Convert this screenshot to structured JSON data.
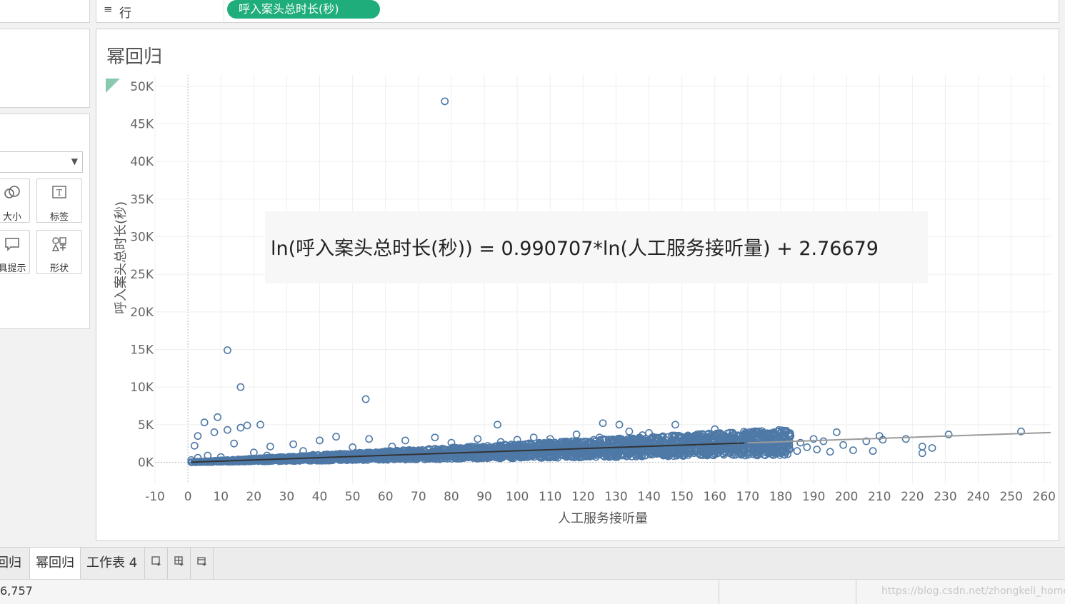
{
  "shelf": {
    "rows_icon": "≡",
    "rows_label": "行",
    "rows_pill": "呼入案头总时长(秒)"
  },
  "marks_panel": {
    "buttons": [
      {
        "label": "大小",
        "icon": "size-icon"
      },
      {
        "label": "标签",
        "icon": "label-icon"
      },
      {
        "label": "具提示",
        "icon": "tooltip-icon"
      },
      {
        "label": "形状",
        "icon": "shape-icon"
      }
    ]
  },
  "chart_data": {
    "type": "scatter",
    "title": "幂回归",
    "xlabel": "人工服务接听量",
    "ylabel": "呼入案头总时长(秒)",
    "xlim": [
      -10,
      262
    ],
    "ylim": [
      -2800,
      51500
    ],
    "x_ticks": [
      -10,
      0,
      10,
      20,
      30,
      40,
      50,
      60,
      70,
      80,
      90,
      100,
      110,
      120,
      130,
      140,
      150,
      160,
      170,
      180,
      190,
      200,
      210,
      220,
      230,
      240,
      250,
      260
    ],
    "y_ticks": [
      0,
      5000,
      10000,
      15000,
      20000,
      25000,
      30000,
      35000,
      40000,
      45000,
      50000
    ],
    "y_tick_labels": [
      "0K",
      "5K",
      "10K",
      "15K",
      "20K",
      "25K",
      "30K",
      "35K",
      "40K",
      "45K",
      "50K"
    ],
    "grid": true,
    "marker": "open circle",
    "series_color": "#4e79a7",
    "trend_color_dark": "#333333",
    "trend_color_light": "#9a9a9a",
    "trend_model": {
      "type": "power",
      "slope": 0.990707,
      "intercept": 2.76679
    },
    "annotation": "ln(呼入案头总时长(秒)) = 0.990707*ln(人工服务接听量) + 2.76679",
    "points": [
      [
        78,
        48000
      ],
      [
        12,
        14900
      ],
      [
        16,
        10000
      ],
      [
        54,
        8400
      ],
      [
        9,
        6000
      ],
      [
        5,
        5300
      ],
      [
        22,
        5000
      ],
      [
        18,
        4900
      ],
      [
        16,
        4600
      ],
      [
        12,
        4300
      ],
      [
        8,
        4000
      ],
      [
        3,
        3500
      ],
      [
        94,
        5000
      ],
      [
        126,
        5200
      ],
      [
        131,
        5000
      ],
      [
        148,
        5000
      ],
      [
        160,
        4400
      ],
      [
        178,
        4000
      ],
      [
        183,
        3500
      ],
      [
        190,
        3100
      ],
      [
        193,
        2800
      ],
      [
        197,
        4000
      ],
      [
        199,
        2300
      ],
      [
        202,
        1600
      ],
      [
        206,
        2800
      ],
      [
        208,
        1500
      ],
      [
        210,
        3500
      ],
      [
        211,
        3000
      ],
      [
        218,
        3100
      ],
      [
        223,
        1200
      ],
      [
        223,
        2100
      ],
      [
        226,
        1900
      ],
      [
        231,
        3700
      ],
      [
        253,
        4100
      ],
      [
        188,
        2000
      ],
      [
        185,
        1500
      ],
      [
        174,
        1900
      ],
      [
        170,
        2400
      ],
      [
        165,
        2900
      ],
      [
        152,
        3400
      ],
      [
        140,
        3900
      ],
      [
        134,
        4100
      ],
      [
        118,
        3700
      ],
      [
        105,
        3300
      ],
      [
        100,
        3000
      ],
      [
        88,
        3100
      ],
      [
        75,
        3300
      ],
      [
        66,
        2900
      ],
      [
        55,
        3100
      ],
      [
        45,
        3400
      ],
      [
        40,
        2900
      ],
      [
        32,
        2400
      ],
      [
        25,
        2100
      ],
      [
        14,
        2500
      ],
      [
        2,
        2200
      ],
      [
        1,
        300
      ],
      [
        3,
        600
      ],
      [
        6,
        900
      ],
      [
        10,
        700
      ],
      [
        20,
        1300
      ],
      [
        35,
        1500
      ],
      [
        50,
        2000
      ],
      [
        62,
        2100
      ],
      [
        80,
        2600
      ],
      [
        95,
        2700
      ],
      [
        110,
        3100
      ],
      [
        125,
        3300
      ],
      [
        138,
        3600
      ],
      [
        150,
        2900
      ],
      [
        162,
        2300
      ],
      [
        172,
        2700
      ],
      [
        176,
        2900
      ],
      [
        181,
        3300
      ],
      [
        186,
        2600
      ],
      [
        191,
        1700
      ],
      [
        195,
        1400
      ],
      [
        168,
        1200
      ],
      [
        156,
        1900
      ],
      [
        144,
        1700
      ],
      [
        130,
        1500
      ],
      [
        115,
        1200
      ],
      [
        98,
        900
      ],
      [
        85,
        800
      ],
      [
        70,
        600
      ],
      [
        58,
        500
      ],
      [
        46,
        300
      ],
      [
        30,
        200
      ],
      [
        24,
        900
      ],
      [
        42,
        800
      ],
      [
        60,
        1000
      ],
      [
        90,
        1400
      ],
      [
        120,
        1800
      ],
      [
        146,
        2100
      ],
      [
        158,
        2500
      ],
      [
        142,
        2800
      ],
      [
        128,
        2400
      ],
      [
        112,
        2100
      ],
      [
        96,
        1900
      ],
      [
        82,
        1700
      ],
      [
        68,
        1500
      ],
      [
        52,
        1200
      ],
      [
        38,
        1000
      ],
      [
        28,
        700
      ]
    ]
  },
  "tabs": [
    {
      "label": "回归",
      "active": false
    },
    {
      "label": "幂回归",
      "active": true
    },
    {
      "label": "工作表 4",
      "active": false
    }
  ],
  "tab_icons": [
    "new-worksheet-icon",
    "new-dashboard-icon",
    "new-story-icon"
  ],
  "status": {
    "count": "6,757",
    "watermark": "https://blog.csdn.net/zhongkeli_home"
  }
}
